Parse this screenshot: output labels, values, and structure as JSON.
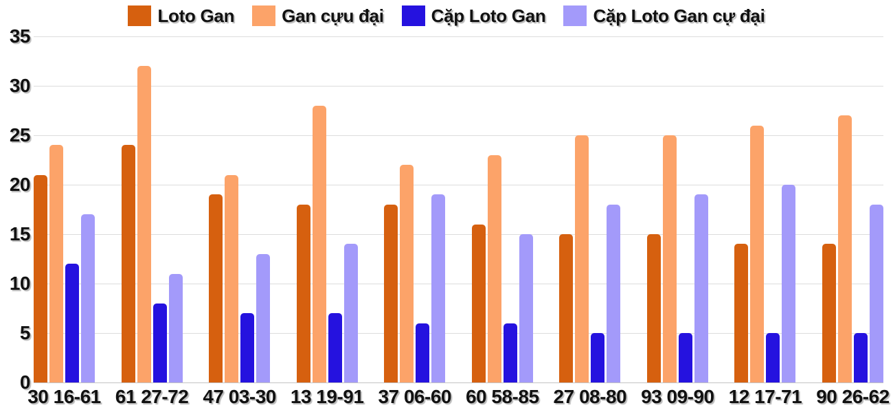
{
  "chart_data": {
    "type": "bar",
    "title": "",
    "xlabel": "",
    "ylabel": "",
    "categories": [
      "30 16-61",
      "61 27-72",
      "47 03-30",
      "13 19-91",
      "37 06-60",
      "60 58-85",
      "27 08-80",
      "93 09-90",
      "12 17-71",
      "90 26-62"
    ],
    "series": [
      {
        "name": "Loto Gan",
        "color": "#d6600f",
        "values": [
          21,
          24,
          19,
          18,
          18,
          16,
          15,
          15,
          14,
          14
        ]
      },
      {
        "name": "Gan cựu đại",
        "color": "#fca369",
        "values": [
          24,
          32,
          21,
          28,
          22,
          23,
          25,
          25,
          26,
          27
        ]
      },
      {
        "name": "Cặp Loto Gan",
        "color": "#2512df",
        "values": [
          12,
          8,
          7,
          7,
          6,
          6,
          5,
          5,
          5,
          5
        ]
      },
      {
        "name": "Cặp Loto Gan cự đại",
        "color": "#a39afa",
        "values": [
          17,
          11,
          13,
          14,
          19,
          15,
          18,
          19,
          20,
          18
        ]
      }
    ],
    "ylim": [
      0,
      35
    ],
    "yticks": [
      0,
      5,
      10,
      15,
      20,
      25,
      30,
      35
    ],
    "grid": true,
    "legend_position": "top"
  },
  "colors": {
    "background": "#ffffff",
    "gridline": "#dcdcdc",
    "axis_baseline": "#c4c4c4",
    "label_text": "#111111"
  }
}
